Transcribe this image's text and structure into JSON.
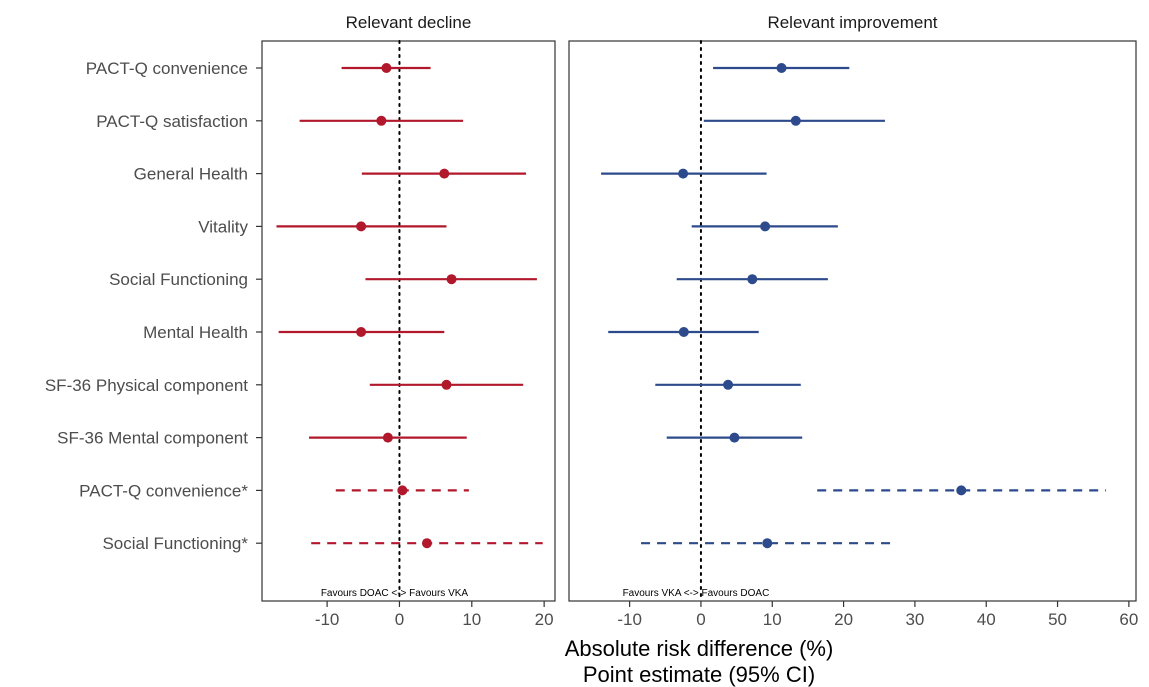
{
  "chart_data": {
    "type": "forest",
    "xlabel": [
      "Absolute risk difference (%)",
      "Point estimate (95% CI)"
    ],
    "categories": [
      "PACT-Q convenience",
      "PACT-Q satisfaction",
      "General Health",
      "Vitality",
      "Social Functioning",
      "Mental Health",
      "SF-36 Physical component",
      "SF-36 Mental component",
      "PACT-Q convenience*",
      "Social Functioning*"
    ],
    "panels": [
      {
        "title": "Relevant decline",
        "color": "#b2182b",
        "xlim": [
          -19,
          21.5
        ],
        "xticks": [
          -10,
          0,
          10,
          20
        ],
        "reference_line": 0,
        "annotation": "Favours DOAC <-> Favours VKA",
        "points": [
          {
            "est": -1.8,
            "lo": -8.0,
            "hi": 4.3,
            "dashed": false
          },
          {
            "est": -2.5,
            "lo": -13.8,
            "hi": 8.8,
            "dashed": false
          },
          {
            "est": 6.2,
            "lo": -5.2,
            "hi": 17.5,
            "dashed": false
          },
          {
            "est": -5.3,
            "lo": -17.0,
            "hi": 6.5,
            "dashed": false
          },
          {
            "est": 7.2,
            "lo": -4.7,
            "hi": 19.0,
            "dashed": false
          },
          {
            "est": -5.3,
            "lo": -16.7,
            "hi": 6.2,
            "dashed": false
          },
          {
            "est": 6.5,
            "lo": -4.1,
            "hi": 17.1,
            "dashed": false
          },
          {
            "est": -1.6,
            "lo": -12.5,
            "hi": 9.3,
            "dashed": false
          },
          {
            "est": 0.4,
            "lo": -8.8,
            "hi": 9.6,
            "dashed": true
          },
          {
            "est": 3.8,
            "lo": -12.2,
            "hi": 19.8,
            "dashed": true
          }
        ]
      },
      {
        "title": "Relevant improvement",
        "color": "#2c4a8c",
        "xlim": [
          -18.5,
          61
        ],
        "xticks": [
          -10,
          0,
          10,
          20,
          30,
          40,
          50,
          60
        ],
        "reference_line": 0,
        "annotation": "Favours VKA <-> Favours DOAC",
        "points": [
          {
            "est": 11.3,
            "lo": 1.7,
            "hi": 20.8,
            "dashed": false
          },
          {
            "est": 13.3,
            "lo": 0.4,
            "hi": 25.8,
            "dashed": false
          },
          {
            "est": -2.5,
            "lo": -14.0,
            "hi": 9.2,
            "dashed": false
          },
          {
            "est": 9.0,
            "lo": -1.3,
            "hi": 19.2,
            "dashed": false
          },
          {
            "est": 7.2,
            "lo": -3.4,
            "hi": 17.8,
            "dashed": false
          },
          {
            "est": -2.4,
            "lo": -13.0,
            "hi": 8.1,
            "dashed": false
          },
          {
            "est": 3.8,
            "lo": -6.4,
            "hi": 14.0,
            "dashed": false
          },
          {
            "est": 4.7,
            "lo": -4.8,
            "hi": 14.2,
            "dashed": false
          },
          {
            "est": 36.5,
            "lo": 16.3,
            "hi": 56.8,
            "dashed": true
          },
          {
            "est": 9.3,
            "lo": -8.4,
            "hi": 27.0,
            "dashed": true
          }
        ]
      }
    ]
  }
}
